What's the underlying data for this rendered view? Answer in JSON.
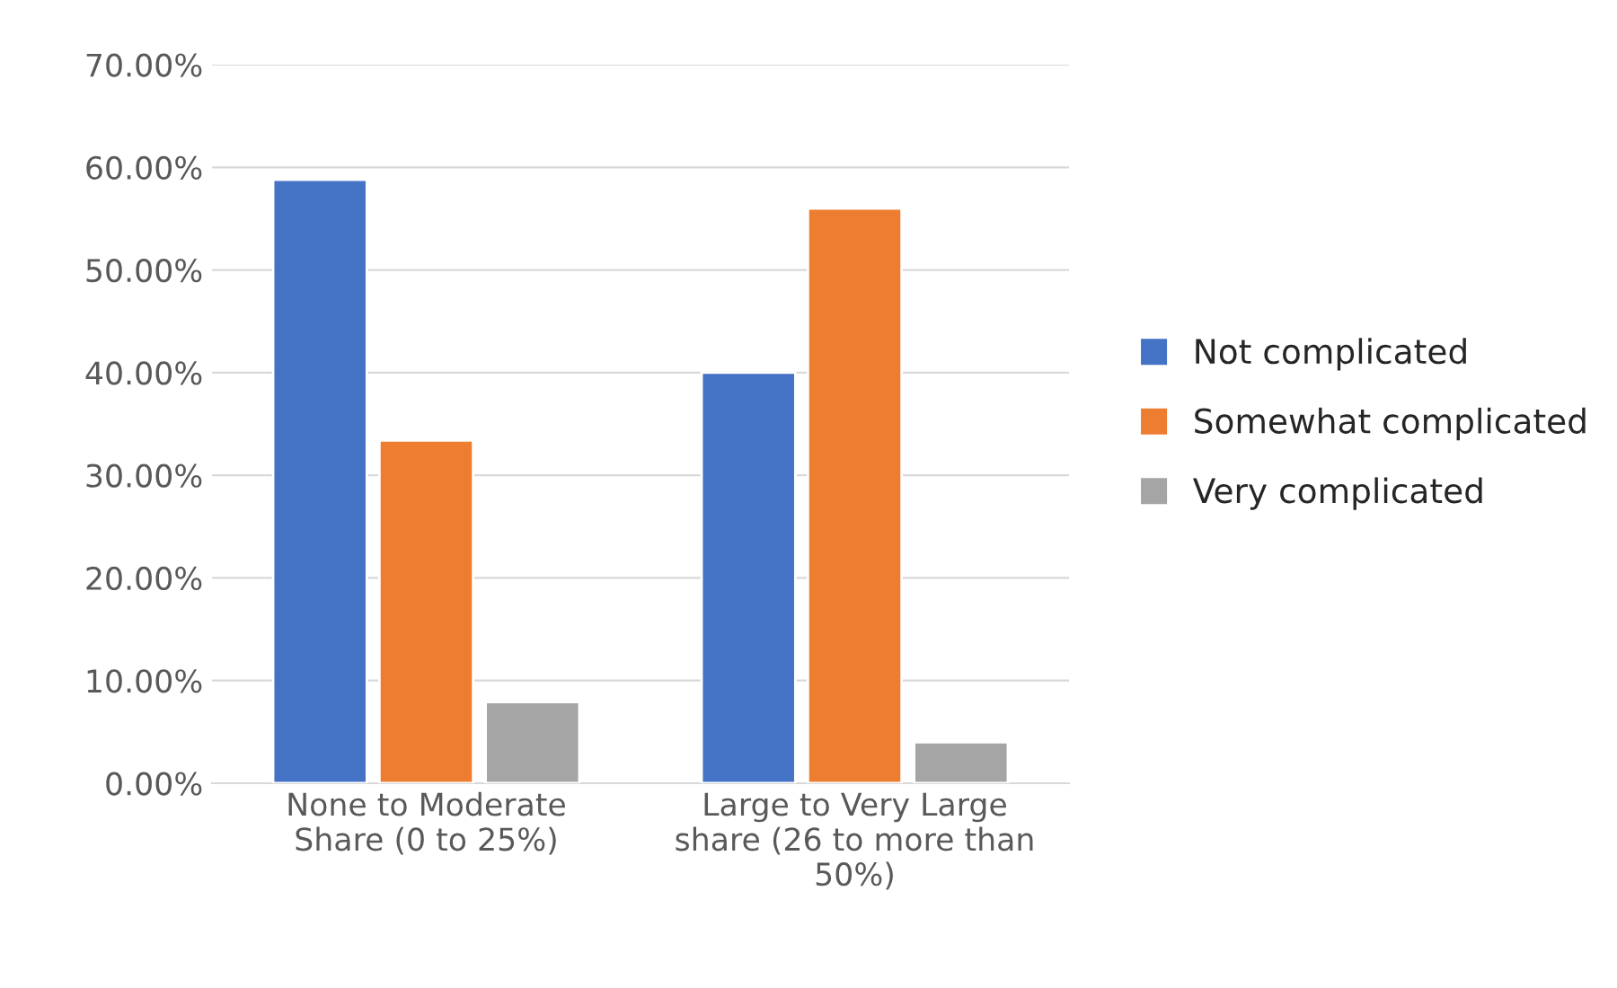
{
  "chart_data": {
    "type": "bar",
    "categories": [
      "None to Moderate\nShare (0 to 25%)",
      "Large to Very Large\nshare (26 to more than\n50%)"
    ],
    "series": [
      {
        "name": "Not complicated",
        "color": "#4472c4",
        "values": [
          58.8,
          40.0
        ]
      },
      {
        "name": "Somewhat complicated",
        "color": "#ed7d31",
        "values": [
          33.4,
          56.0
        ]
      },
      {
        "name": "Very complicated",
        "color": "#a5a5a5",
        "values": [
          7.9,
          4.0
        ]
      }
    ],
    "ylim": [
      0,
      70
    ],
    "yticks": [
      {
        "value": 0,
        "label": "0.00%"
      },
      {
        "value": 10,
        "label": "10.00%"
      },
      {
        "value": 20,
        "label": "20.00%"
      },
      {
        "value": 30,
        "label": "30.00%"
      },
      {
        "value": 40,
        "label": "40.00%"
      },
      {
        "value": 50,
        "label": "50.00%"
      },
      {
        "value": 60,
        "label": "60.00%"
      },
      {
        "value": 70,
        "label": "70.00%"
      }
    ],
    "grid": "y",
    "legend": "right"
  }
}
